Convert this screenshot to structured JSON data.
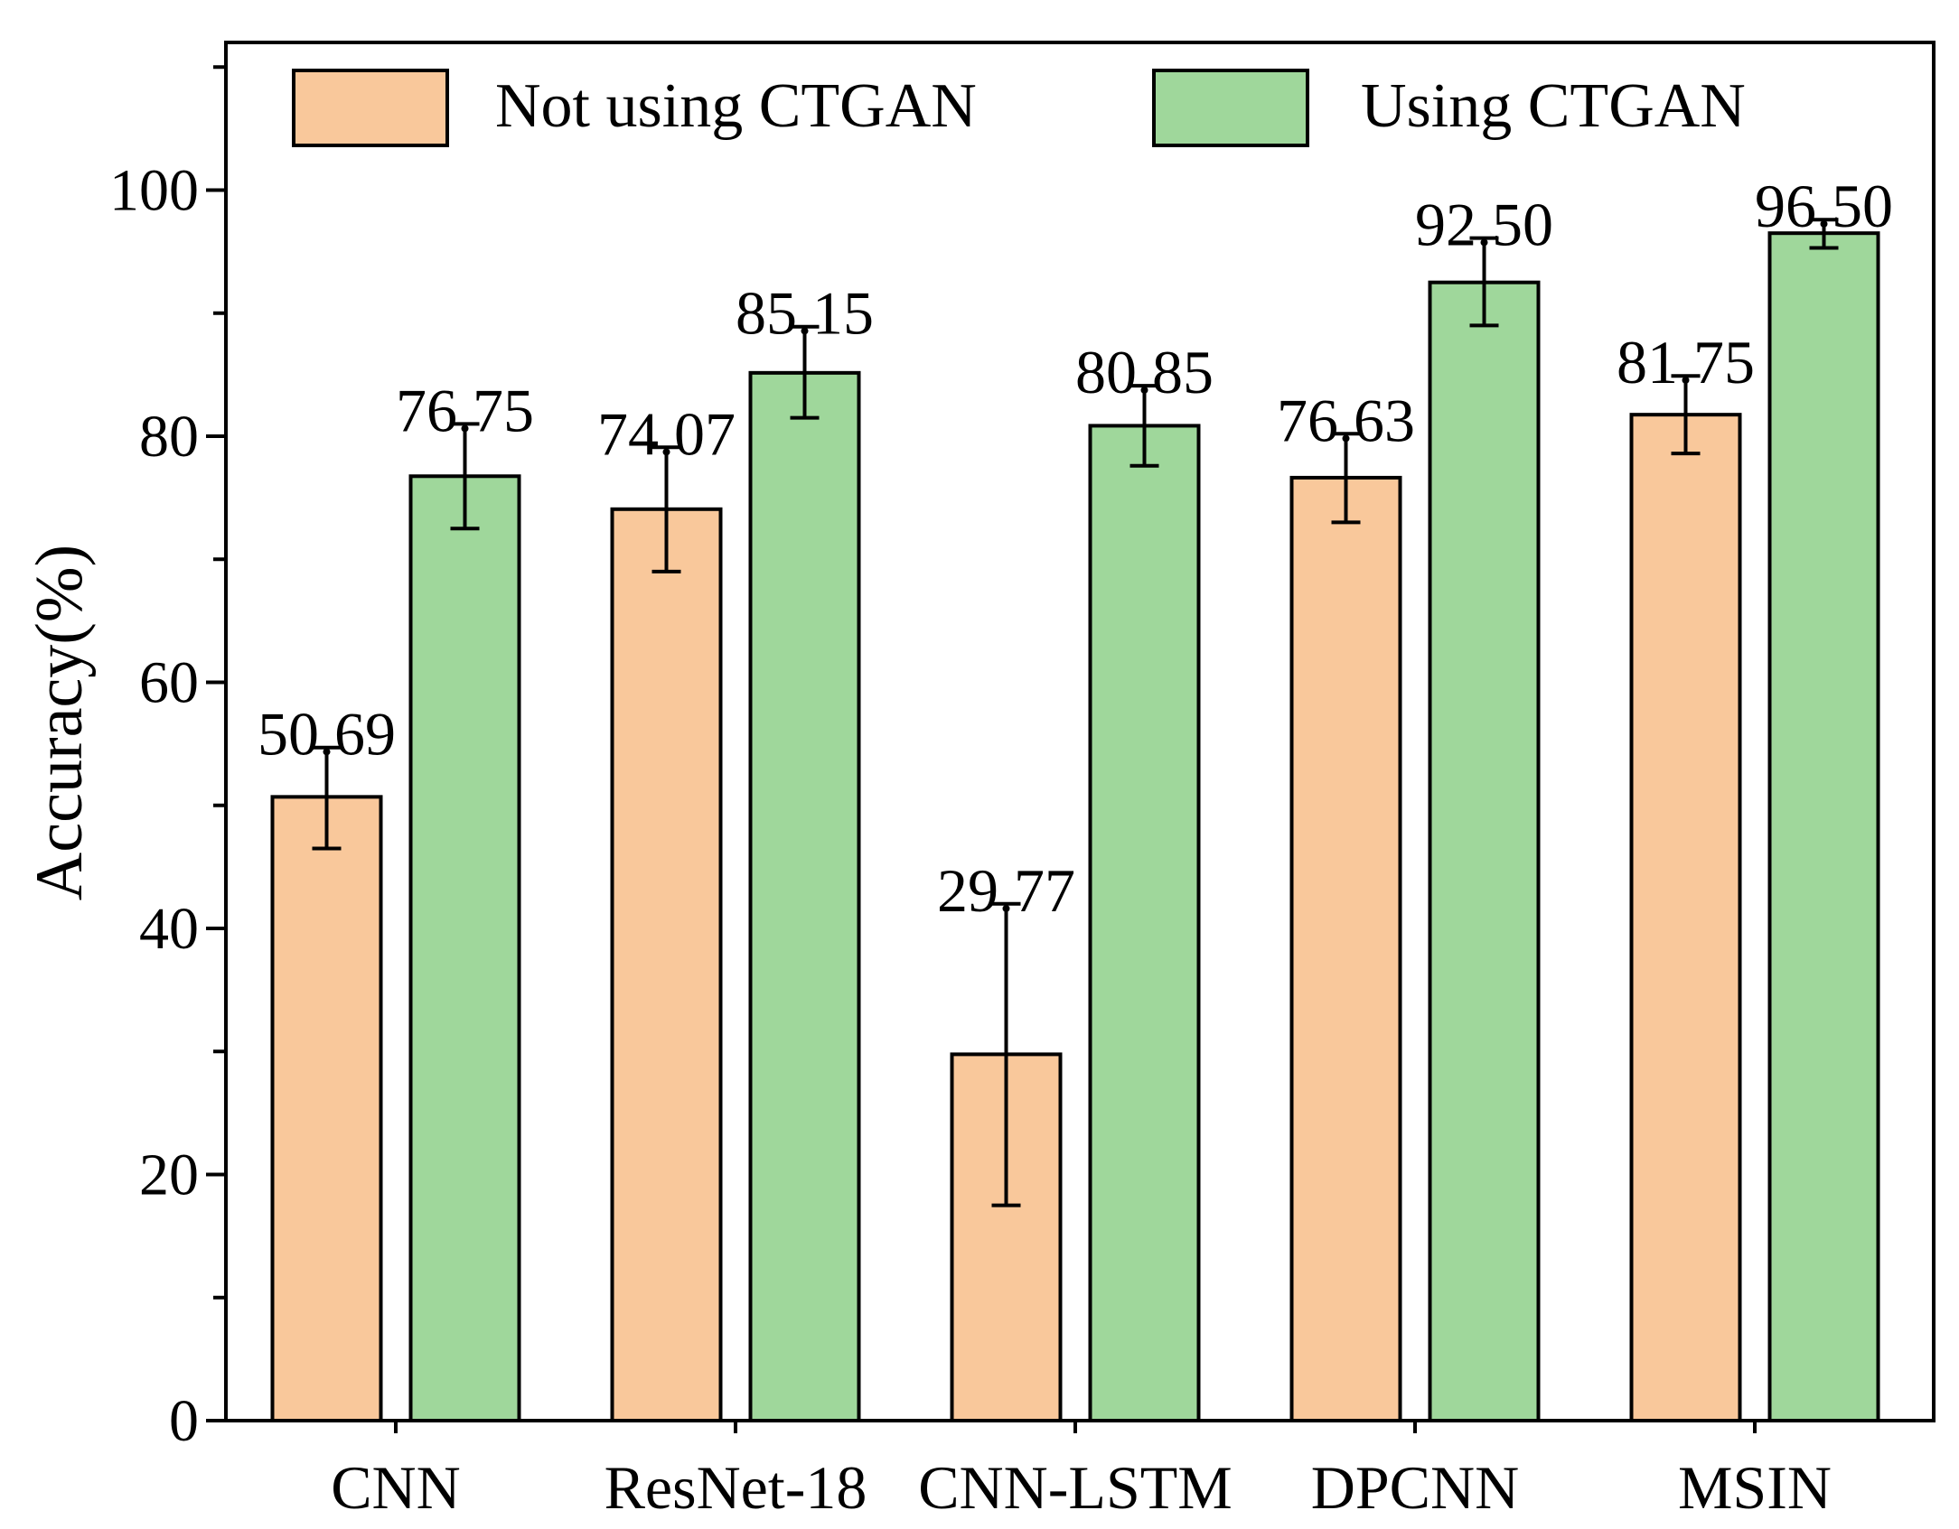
{
  "chart_data": {
    "type": "bar",
    "title": "",
    "xlabel": "",
    "ylabel": "Accuracy(%)",
    "ylim": [
      0,
      112
    ],
    "yticks": [
      0,
      20,
      40,
      60,
      80,
      100
    ],
    "ytick_labels": [
      "0",
      "20",
      "40",
      "60",
      "80",
      "100"
    ],
    "minor_tick_step": 10,
    "grid": false,
    "legend_position": "top",
    "categories": [
      "CNN",
      "ResNet-18",
      "CNN-LSTM",
      "DPCNN",
      "MSIN"
    ],
    "series": [
      {
        "name": "Not using CTGAN",
        "color": "#f9c89b",
        "values": [
          50.69,
          74.07,
          29.77,
          76.63,
          81.75
        ],
        "labels": [
          "50.69",
          "74.07",
          "29.77",
          "76.63",
          "81.75"
        ],
        "error_low": [
          46.5,
          69.0,
          17.5,
          73.0,
          78.6
        ],
        "error_high": [
          54.7,
          79.1,
          42.0,
          80.2,
          84.9
        ]
      },
      {
        "name": "Using CTGAN",
        "color": "#9fd79b",
        "values": [
          76.75,
          85.15,
          80.85,
          92.5,
          96.5
        ],
        "labels": [
          "76.75",
          "85.15",
          "80.85",
          "92.50",
          "96.50"
        ],
        "error_low": [
          72.5,
          81.5,
          77.6,
          89.0,
          95.3
        ],
        "error_high": [
          81.0,
          88.9,
          84.1,
          96.1,
          97.6
        ]
      }
    ]
  }
}
